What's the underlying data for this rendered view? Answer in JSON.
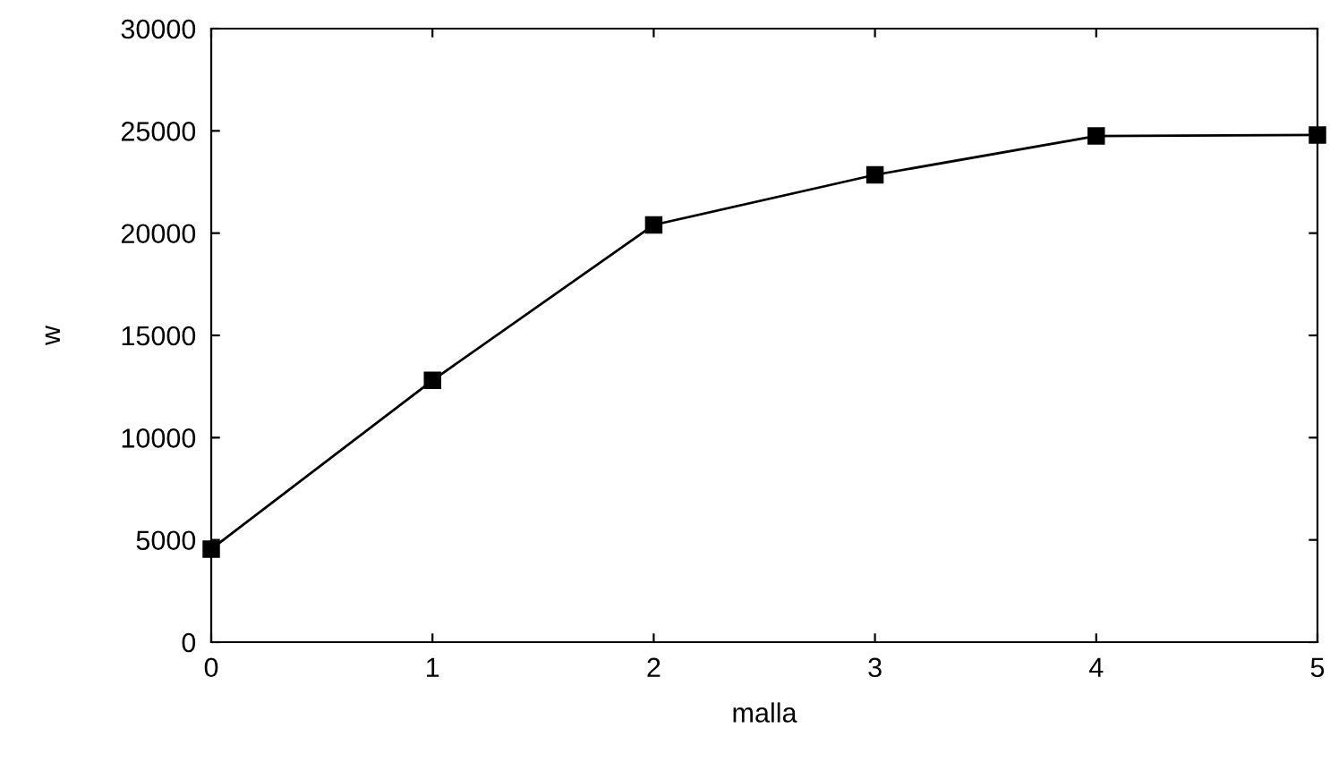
{
  "chart_data": {
    "type": "line",
    "xlabel": "malla",
    "ylabel": "w",
    "x": [
      0,
      1,
      2,
      3,
      4,
      5
    ],
    "series": [
      {
        "color": "#000000",
        "values": [
          4550,
          12800,
          20400,
          22850,
          24750,
          24800
        ]
      }
    ],
    "xlim": [
      0,
      5
    ],
    "xticks": [
      0,
      1,
      2,
      3,
      4,
      5
    ],
    "ylim": [
      0,
      30000
    ],
    "yticks": [
      0,
      5000,
      10000,
      15000,
      20000,
      25000,
      30000
    ],
    "marker": "square",
    "line_style": "solid",
    "grid": false,
    "legend": false
  }
}
